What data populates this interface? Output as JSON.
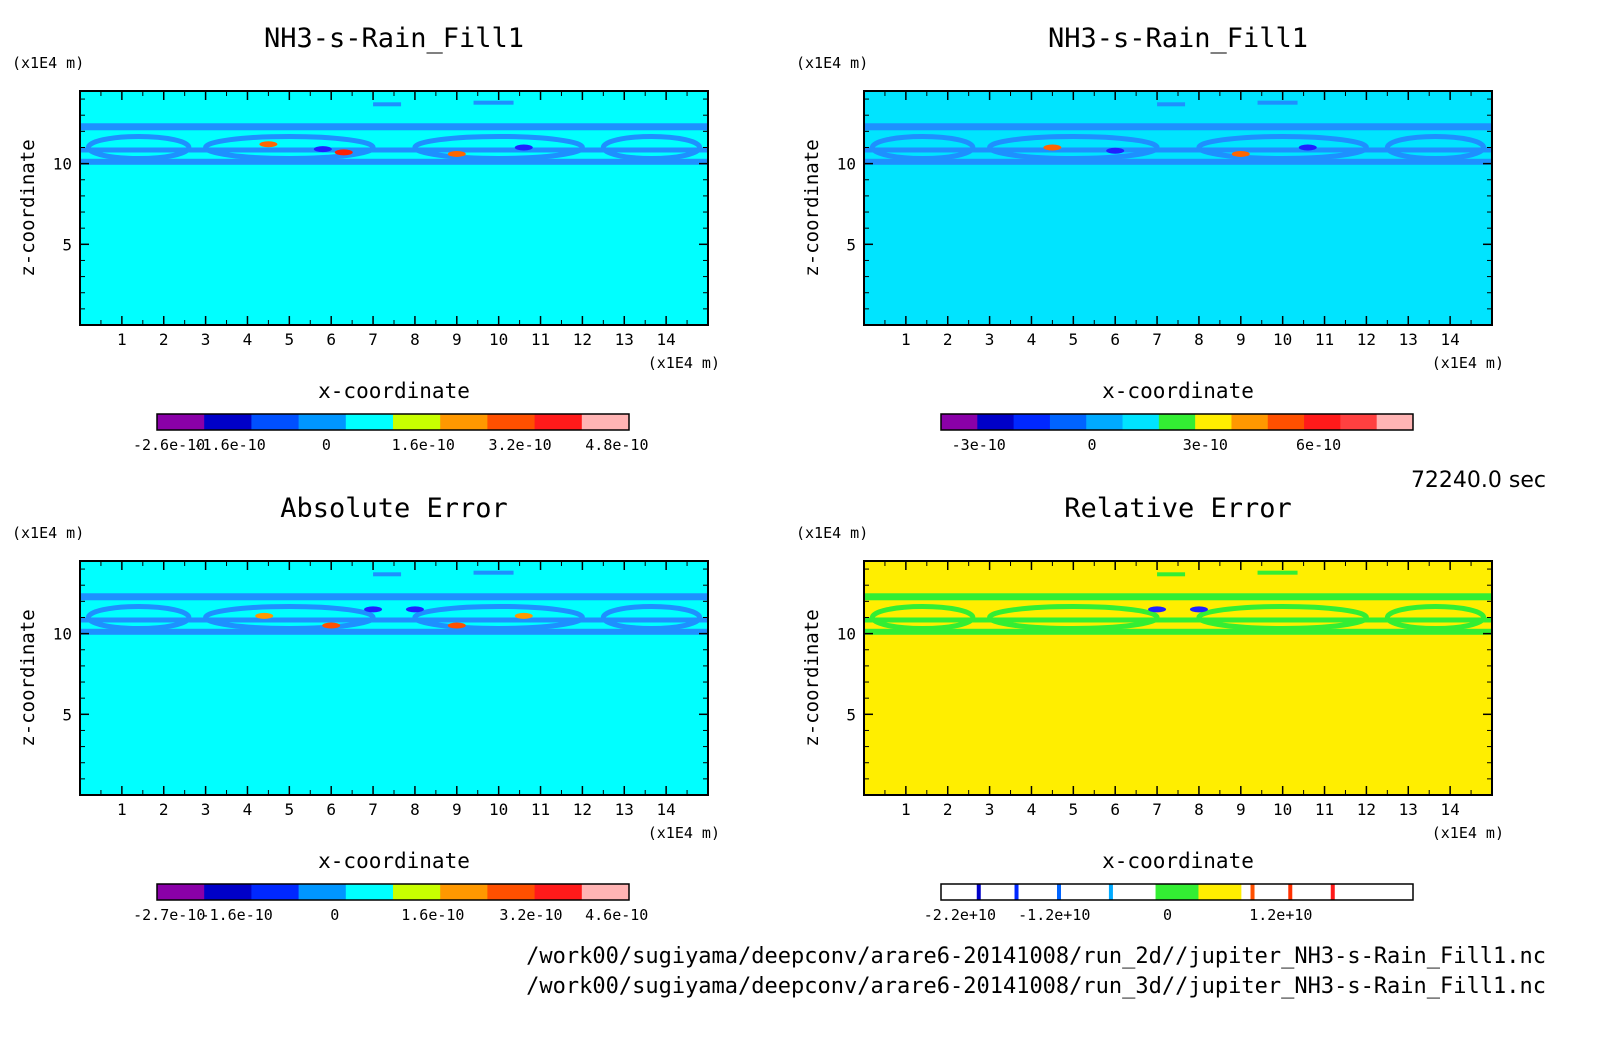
{
  "footer": {
    "timestamp": "72240.0 sec",
    "paths": [
      "/work00/sugiyama/deepconv/arare6-20141008/run_2d//jupiter_NH3-s-Rain_Fill1.nc",
      "/work00/sugiyama/deepconv/arare6-20141008/run_3d//jupiter_NH3-s-Rain_Fill1.nc"
    ]
  },
  "chart_data": [
    {
      "type": "heatmap",
      "title": "NH3-s-Rain_Fill1",
      "xlabel": "x-coordinate",
      "ylabel": "z-coordinate",
      "x_unit": "(x1E4 m)",
      "y_unit": "(x1E4 m)",
      "xlim": [
        0,
        15
      ],
      "ylim": [
        0,
        14.5
      ],
      "x_ticks": [
        "1",
        "2",
        "3",
        "4",
        "5",
        "6",
        "7",
        "8",
        "9",
        "10",
        "11",
        "12",
        "13",
        "14"
      ],
      "y_ticks": [
        "5",
        "10"
      ],
      "background_color": "#00ffff",
      "band_color": "#1e90ff",
      "blobs": [
        {
          "x": 4.5,
          "z": 11.2,
          "color": "#ff6600"
        },
        {
          "x": 5.8,
          "z": 10.9,
          "color": "#2020ff"
        },
        {
          "x": 6.3,
          "z": 10.7,
          "color": "#ff2000"
        },
        {
          "x": 9.0,
          "z": 10.6,
          "color": "#ff6600"
        },
        {
          "x": 10.6,
          "z": 11.0,
          "color": "#2020ff"
        }
      ],
      "colorbar": {
        "colors": [
          "#8a00a8",
          "#0000c8",
          "#0050ff",
          "#0096ff",
          "#00ffff",
          "#c8ff00",
          "#ff9800",
          "#ff5000",
          "#ff1a1a",
          "#ffb4b4"
        ],
        "tick_labels": [
          "-2.6e-10",
          "-1.6e-10",
          "0",
          "1.6e-10",
          "3.2e-10",
          "4.8e-10"
        ],
        "tick_values": [
          -2.6e-10,
          -1.6e-10,
          0,
          1.6e-10,
          3.2e-10,
          4.8e-10
        ],
        "range": [
          -2.8e-10,
          5e-10
        ]
      }
    },
    {
      "type": "heatmap",
      "title": "NH3-s-Rain_Fill1",
      "xlabel": "x-coordinate",
      "ylabel": "z-coordinate",
      "x_unit": "(x1E4 m)",
      "y_unit": "(x1E4 m)",
      "xlim": [
        0,
        15
      ],
      "ylim": [
        0,
        14.5
      ],
      "x_ticks": [
        "1",
        "2",
        "3",
        "4",
        "5",
        "6",
        "7",
        "8",
        "9",
        "10",
        "11",
        "12",
        "13",
        "14"
      ],
      "y_ticks": [
        "5",
        "10"
      ],
      "background_color": "#00e4ff",
      "band_color": "#1e90ff",
      "blobs": [
        {
          "x": 4.5,
          "z": 11.0,
          "color": "#ff6600"
        },
        {
          "x": 6.0,
          "z": 10.8,
          "color": "#2020ff"
        },
        {
          "x": 9.0,
          "z": 10.6,
          "color": "#ff6600"
        },
        {
          "x": 10.6,
          "z": 11.0,
          "color": "#2020ff"
        }
      ],
      "colorbar": {
        "colors": [
          "#8a00a8",
          "#0000c8",
          "#0028ff",
          "#0064ff",
          "#00aaff",
          "#00e4ff",
          "#33ee33",
          "#ffee00",
          "#ff9800",
          "#ff5000",
          "#ff1a1a",
          "#ff4040",
          "#ffb4b4"
        ],
        "tick_labels": [
          "-3e-10",
          "0",
          "3e-10",
          "6e-10"
        ],
        "tick_values": [
          -3e-10,
          0,
          3e-10,
          6e-10
        ],
        "range": [
          -4e-10,
          8.5e-10
        ]
      }
    },
    {
      "type": "heatmap",
      "title": "Absolute Error",
      "xlabel": "x-coordinate",
      "ylabel": "z-coordinate",
      "x_unit": "(x1E4 m)",
      "y_unit": "(x1E4 m)",
      "xlim": [
        0,
        15
      ],
      "ylim": [
        0,
        14.5
      ],
      "x_ticks": [
        "1",
        "2",
        "3",
        "4",
        "5",
        "6",
        "7",
        "8",
        "9",
        "10",
        "11",
        "12",
        "13",
        "14"
      ],
      "y_ticks": [
        "5",
        "10"
      ],
      "background_color": "#00ffff",
      "band_color": "#1e90ff",
      "blobs": [
        {
          "x": 4.4,
          "z": 11.1,
          "color": "#ff9800"
        },
        {
          "x": 6.0,
          "z": 10.5,
          "color": "#ff5000"
        },
        {
          "x": 7.0,
          "z": 11.5,
          "color": "#2020ff"
        },
        {
          "x": 8.0,
          "z": 11.5,
          "color": "#2020ff"
        },
        {
          "x": 9.0,
          "z": 10.5,
          "color": "#ff5000"
        },
        {
          "x": 10.6,
          "z": 11.1,
          "color": "#ff9800"
        }
      ],
      "colorbar": {
        "colors": [
          "#8a00a8",
          "#0000c8",
          "#0028ff",
          "#0096ff",
          "#00ffff",
          "#c8ff00",
          "#ff9800",
          "#ff5000",
          "#ff1a1a",
          "#ffb4b4"
        ],
        "tick_labels": [
          "-2.7e-10",
          "-1.6e-10",
          "0",
          "1.6e-10",
          "3.2e-10",
          "4.6e-10"
        ],
        "tick_values": [
          -2.7e-10,
          -1.6e-10,
          0,
          1.6e-10,
          3.2e-10,
          4.6e-10
        ],
        "range": [
          -2.9e-10,
          4.8e-10
        ]
      }
    },
    {
      "type": "heatmap",
      "title": "Relative Error",
      "xlabel": "x-coordinate",
      "ylabel": "z-coordinate",
      "x_unit": "(x1E4 m)",
      "y_unit": "(x1E4 m)",
      "xlim": [
        0,
        15
      ],
      "ylim": [
        0,
        14.5
      ],
      "x_ticks": [
        "1",
        "2",
        "3",
        "4",
        "5",
        "6",
        "7",
        "8",
        "9",
        "10",
        "11",
        "12",
        "13",
        "14"
      ],
      "y_ticks": [
        "5",
        "10"
      ],
      "background_color": "#ffee00",
      "band_color": "#33ee33",
      "blobs": [
        {
          "x": 7.0,
          "z": 11.5,
          "color": "#2020ff"
        },
        {
          "x": 8.0,
          "z": 11.5,
          "color": "#2020ff"
        }
      ],
      "colorbar": {
        "colors": [
          "#ffffff",
          "#ffffff",
          "#ffffff",
          "#ffffff",
          "#ffffff",
          "#33ee33",
          "#ffee00",
          "#ffffff",
          "#ffffff",
          "#ffffff",
          "#ffffff"
        ],
        "lines": [
          {
            "value": -20000000000.0,
            "color": "#0000c8"
          },
          {
            "value": -16000000000.0,
            "color": "#0028ff"
          },
          {
            "value": -11500000000.0,
            "color": "#0064ff"
          },
          {
            "value": -6000000000.0,
            "color": "#00aaff"
          },
          {
            "value": 9000000000.0,
            "color": "#ff5000"
          },
          {
            "value": 13000000000.0,
            "color": "#ff3000"
          },
          {
            "value": 17500000000.0,
            "color": "#ff1a1a"
          }
        ],
        "tick_labels": [
          "-2.2e+10",
          "-1.2e+10",
          "0",
          "1.2e+10"
        ],
        "tick_values": [
          -22000000000.0,
          -12000000000.0,
          0,
          12000000000.0
        ],
        "range": [
          -24000000000.0,
          26000000000.0
        ]
      }
    }
  ]
}
